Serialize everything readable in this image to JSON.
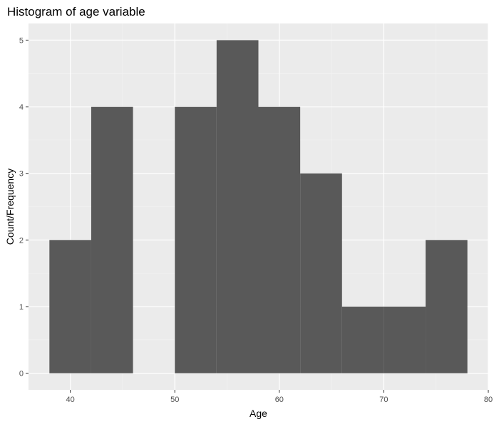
{
  "chart_data": {
    "type": "bar",
    "title": "Histogram of age variable",
    "xlabel": "Age",
    "ylabel": "Count/Frequency",
    "xlim": [
      36,
      80
    ],
    "ylim": [
      -0.25,
      5.25
    ],
    "x_ticks": [
      40,
      50,
      60,
      70,
      80
    ],
    "y_ticks": [
      0,
      1,
      2,
      3,
      4,
      5
    ],
    "bins": [
      {
        "start": 38,
        "end": 42,
        "count": 2
      },
      {
        "start": 42,
        "end": 46,
        "count": 4
      },
      {
        "start": 46,
        "end": 50,
        "count": 0
      },
      {
        "start": 50,
        "end": 54,
        "count": 4
      },
      {
        "start": 54,
        "end": 58,
        "count": 5
      },
      {
        "start": 58,
        "end": 62,
        "count": 4
      },
      {
        "start": 62,
        "end": 66,
        "count": 3
      },
      {
        "start": 66,
        "end": 70,
        "count": 1
      },
      {
        "start": 70,
        "end": 74,
        "count": 1
      },
      {
        "start": 74,
        "end": 78,
        "count": 2
      }
    ],
    "grid": true,
    "colors": {
      "bar": "#595959",
      "panel": "#ebebeb",
      "grid_major": "#ffffff",
      "grid_minor": "#f4f4f4"
    }
  }
}
